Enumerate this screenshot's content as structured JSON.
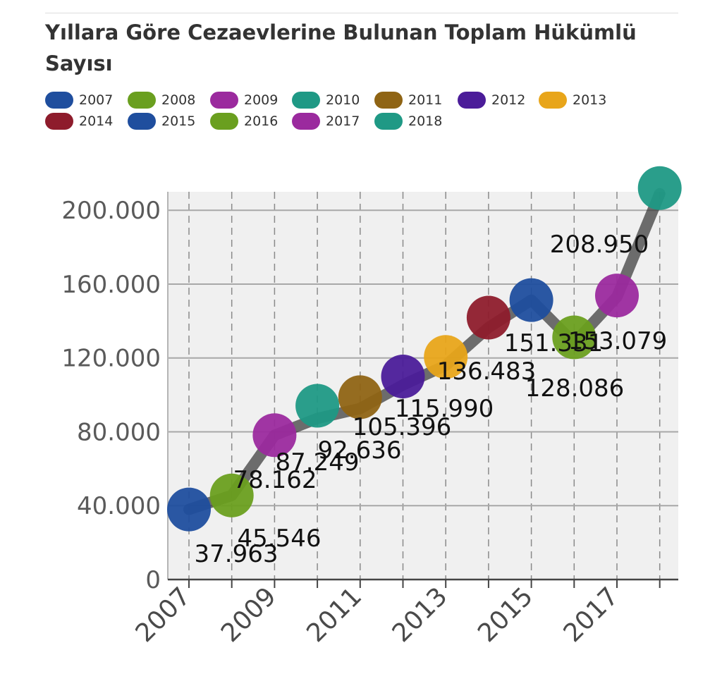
{
  "title": "Yıllara Göre Cezaevlerine Bulunan Toplam Hükümlü Sayısı",
  "legend": [
    {
      "label": "2007",
      "color": "#1f4e9e"
    },
    {
      "label": "2008",
      "color": "#6a9f1f"
    },
    {
      "label": "2009",
      "color": "#9b2a9e"
    },
    {
      "label": "2010",
      "color": "#1f9985"
    },
    {
      "label": "2011",
      "color": "#8f6414"
    },
    {
      "label": "2012",
      "color": "#4b1c99"
    },
    {
      "label": "2013",
      "color": "#e8a51a"
    },
    {
      "label": "2014",
      "color": "#8e1c2c"
    },
    {
      "label": "2015",
      "color": "#1f4e9e"
    },
    {
      "label": "2016",
      "color": "#6a9f1f"
    },
    {
      "label": "2017",
      "color": "#9b2a9e"
    },
    {
      "label": "2018",
      "color": "#1f9985"
    }
  ],
  "chart_data": {
    "type": "line",
    "x": [
      2007,
      2008,
      2009,
      2010,
      2011,
      2012,
      2013,
      2014,
      2015,
      2016,
      2017,
      2018
    ],
    "values": [
      37963,
      45546,
      78162,
      87249,
      92636,
      105396,
      115990,
      136483,
      151331,
      128086,
      153079,
      208950
    ],
    "data_labels": [
      "37.963",
      "45.546",
      "78.162",
      "87.249",
      "92.636",
      "105.396",
      "115.990",
      "136.483",
      "151.331",
      "128.086",
      "153.079",
      "208.950"
    ],
    "x_tick_labels": [
      "2007",
      "2009",
      "2011",
      "2013",
      "2015",
      "2017"
    ],
    "y_ticks": [
      0,
      40000,
      80000,
      120000,
      160000,
      200000
    ],
    "y_tick_labels": [
      "0",
      "40.000",
      "80.000",
      "120.000",
      "160.000",
      "200.000"
    ],
    "ylim": [
      0,
      210000
    ],
    "grid": true,
    "legend_position": "top",
    "line_color": "#333333"
  }
}
